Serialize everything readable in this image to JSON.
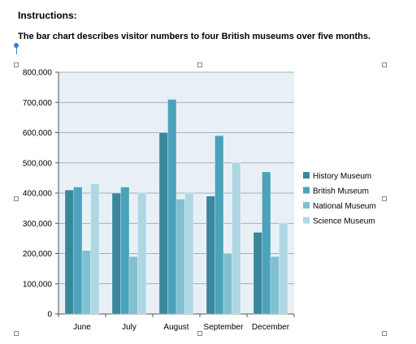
{
  "document": {
    "heading": "Instructions:",
    "description": "The bar chart describes visitor numbers to four British museums over five months."
  },
  "chart_data": {
    "type": "bar",
    "categories": [
      "June",
      "July",
      "August",
      "September",
      "December"
    ],
    "series": [
      {
        "name": "History Museum",
        "color": "#3a869b",
        "values": [
          410000,
          400000,
          600000,
          390000,
          270000
        ]
      },
      {
        "name": "British Museum",
        "color": "#4aa3ba",
        "values": [
          420000,
          420000,
          710000,
          590000,
          470000
        ]
      },
      {
        "name": "National Museum",
        "color": "#7fc1d0",
        "values": [
          210000,
          190000,
          380000,
          200000,
          190000
        ]
      },
      {
        "name": "Science Museum",
        "color": "#aed7e2",
        "values": [
          430000,
          400000,
          400000,
          500000,
          300000
        ]
      }
    ],
    "yticks": [
      "0",
      "100,000",
      "200,000",
      "300,000",
      "400,000",
      "500,000",
      "600,000",
      "700,000",
      "800,000"
    ],
    "ylim": [
      0,
      800000
    ],
    "grid": true,
    "legend": "right",
    "plot_background": "#e8f0f6"
  }
}
